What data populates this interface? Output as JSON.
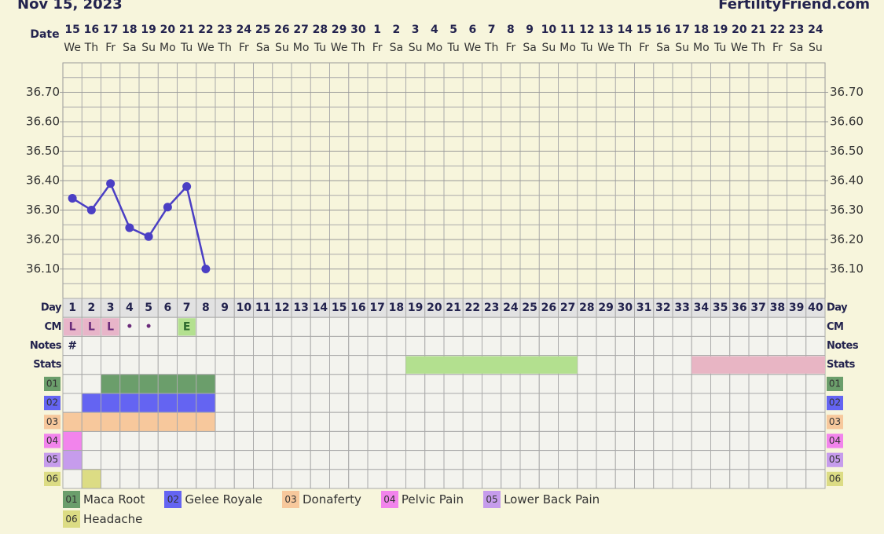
{
  "title": "Nov 15, 2023",
  "site": "FertilityFriend.com",
  "chart_data": {
    "type": "line",
    "date_label": "Date",
    "dates": [
      15,
      16,
      17,
      18,
      19,
      20,
      21,
      22,
      23,
      24,
      25,
      26,
      27,
      28,
      29,
      30,
      1,
      2,
      3,
      4,
      5,
      6,
      7,
      8,
      9,
      10,
      11,
      12,
      13,
      14,
      15,
      16,
      17,
      18,
      19,
      20,
      21,
      22,
      23,
      24
    ],
    "weekdays": [
      "We",
      "Th",
      "Fr",
      "Sa",
      "Su",
      "Mo",
      "Tu",
      "We",
      "Th",
      "Fr",
      "Sa",
      "Su",
      "Mo",
      "Tu",
      "We",
      "Th",
      "Fr",
      "Sa",
      "Su",
      "Mo",
      "Tu",
      "We",
      "Th",
      "Fr",
      "Sa",
      "Su",
      "Mo",
      "Tu",
      "We",
      "Th",
      "Fr",
      "Sa",
      "Su",
      "Mo",
      "Tu",
      "We",
      "Th",
      "Fr",
      "Sa",
      "Su"
    ],
    "values": [
      36.34,
      36.3,
      36.39,
      36.24,
      36.21,
      36.31,
      36.38,
      36.1,
      null,
      null,
      null,
      null,
      null,
      null,
      null,
      null,
      null,
      null,
      null,
      null,
      null,
      null,
      null,
      null,
      null,
      null,
      null,
      null,
      null,
      null,
      null,
      null,
      null,
      null,
      null,
      null,
      null,
      null,
      null,
      null
    ],
    "color": "#4b3fc4",
    "ylim": [
      36.0,
      36.8
    ],
    "yticks": [
      {
        "value": 36.1,
        "label": "36.10"
      },
      {
        "value": 36.2,
        "label": "36.20"
      },
      {
        "value": 36.3,
        "label": "36.30"
      },
      {
        "value": 36.4,
        "label": "36.40"
      },
      {
        "value": 36.5,
        "label": "36.50"
      },
      {
        "value": 36.6,
        "label": "36.60"
      },
      {
        "value": 36.7,
        "label": "36.70"
      }
    ],
    "minor_yticks": [
      36.05,
      36.15,
      36.25,
      36.35,
      36.45,
      36.55,
      36.65,
      36.75
    ],
    "grid": true
  },
  "table": {
    "day_label": "Day",
    "days": [
      1,
      2,
      3,
      4,
      5,
      6,
      7,
      8,
      9,
      10,
      11,
      12,
      13,
      14,
      15,
      16,
      17,
      18,
      19,
      20,
      21,
      22,
      23,
      24,
      25,
      26,
      27,
      28,
      29,
      30,
      31,
      32,
      33,
      34,
      35,
      36,
      37,
      38,
      39,
      40
    ],
    "cm_label": "CM",
    "cm": [
      "L",
      "L",
      "L",
      "•",
      "•",
      null,
      "E",
      null,
      null,
      null,
      null,
      null,
      null,
      null,
      null,
      null,
      null,
      null,
      null,
      null,
      null,
      null,
      null,
      null,
      null,
      null,
      null,
      null,
      null,
      null,
      null,
      null,
      null,
      null,
      null,
      null,
      null,
      null,
      null,
      null
    ],
    "cm_colors": {
      "L": "#e8b5c9",
      "E": "#b3e08f"
    },
    "notes_label": "Notes",
    "notes": [
      "#",
      null,
      null,
      null,
      null,
      null,
      null,
      null,
      null,
      null,
      null,
      null,
      null,
      null,
      null,
      null,
      null,
      null,
      null,
      null,
      null,
      null,
      null,
      null,
      null,
      null,
      null,
      null,
      null,
      null,
      null,
      null,
      null,
      null,
      null,
      null,
      null,
      null,
      null,
      null
    ],
    "stats_label": "Stats",
    "stats": [
      {
        "start": 19,
        "end": 27,
        "color": "#b3e08f"
      },
      {
        "start": 34,
        "end": 40,
        "color": "#e8b5c4"
      }
    ],
    "symptoms": [
      {
        "code": "01",
        "name": "Maca Root",
        "color": "#6b9e6b",
        "days": [
          3,
          4,
          5,
          6,
          7,
          8
        ]
      },
      {
        "code": "02",
        "name": "Gelee Royale",
        "color": "#6464f2",
        "days": [
          2,
          3,
          4,
          5,
          6,
          7,
          8
        ]
      },
      {
        "code": "03",
        "name": "Donaferty",
        "color": "#f7c89c",
        "days": [
          1,
          2,
          3,
          4,
          5,
          6,
          7,
          8
        ]
      },
      {
        "code": "04",
        "name": "Pelvic Pain",
        "color": "#f284ec",
        "days": [
          1
        ]
      },
      {
        "code": "05",
        "name": "Lower Back Pain",
        "color": "#c69cec",
        "days": [
          1
        ]
      },
      {
        "code": "06",
        "name": "Headache",
        "color": "#dcdc84",
        "days": [
          2
        ]
      }
    ]
  }
}
